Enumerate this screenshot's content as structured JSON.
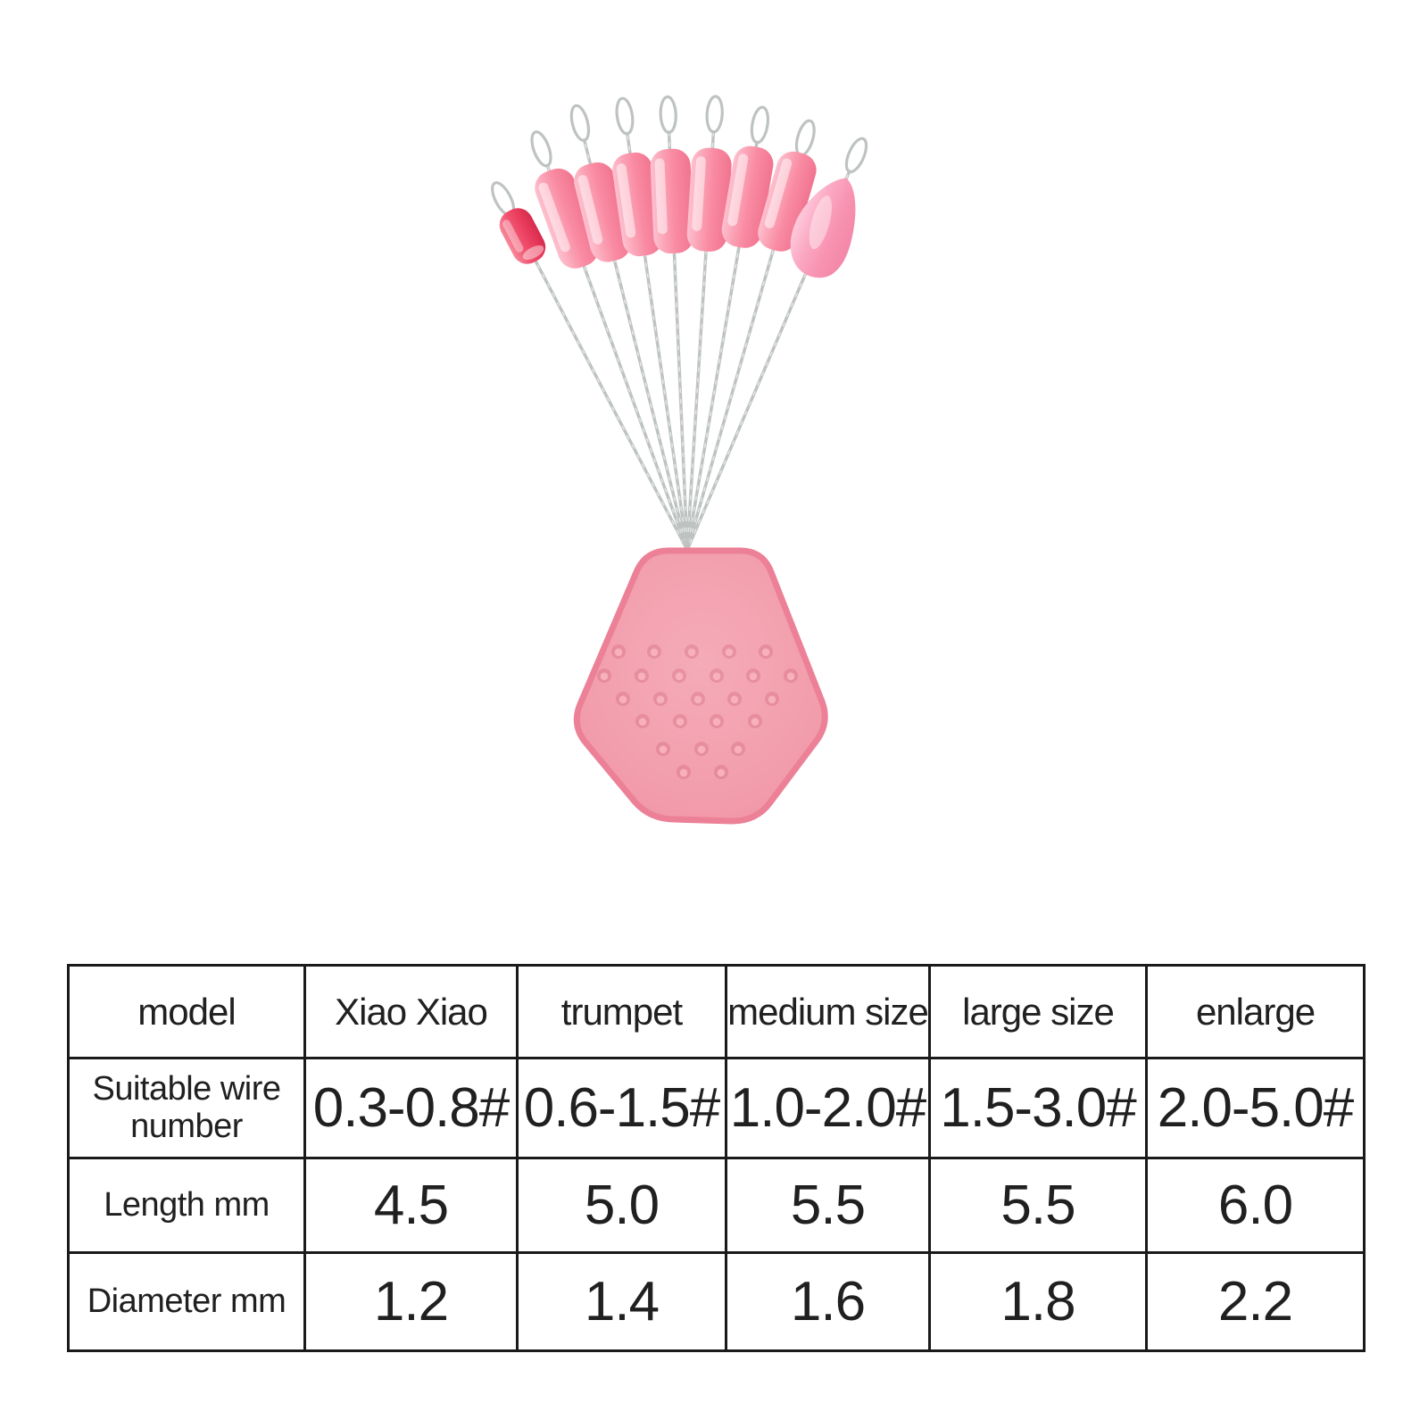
{
  "page": {
    "background": "#ffffff"
  },
  "illustration": {
    "description": "Nine silicone fishing bobber stoppers on twisted wire threader loops, fanned out from a pink hexagonal rubber holder base with dimples",
    "stopper_count": 9,
    "bead_shapes": [
      "red-capsule",
      "cylinder",
      "cylinder",
      "cylinder",
      "cylinder",
      "cylinder",
      "cylinder",
      "cylinder",
      "teardrop"
    ],
    "palette": {
      "cylinder_pink": "#f98ba3",
      "cylinder_highlight": "#fdc1cf",
      "red_bead": "#e93b5c",
      "teardrop_pink": "#f893b2",
      "base_pink": "#f29cab",
      "base_rim": "#ec8096",
      "wire_gray": "#bec3c2"
    }
  },
  "table": {
    "text_color": "#202020",
    "border_color": "#1a1a1a",
    "rows": [
      {
        "header": "model",
        "values": [
          "Xiao Xiao",
          "trumpet",
          "medium size",
          "large size",
          "enlarge"
        ]
      },
      {
        "header": "Suitable wire number",
        "values": [
          "0.3-0.8#",
          "0.6-1.5#",
          "1.0-2.0#",
          "1.5-3.0#",
          "2.0-5.0#"
        ]
      },
      {
        "header": "Length mm",
        "values": [
          "4.5",
          "5.0",
          "5.5",
          "5.5",
          "6.0"
        ]
      },
      {
        "header": "Diameter mm",
        "values": [
          "1.2",
          "1.4",
          "1.6",
          "1.8",
          "2.2"
        ]
      }
    ]
  }
}
